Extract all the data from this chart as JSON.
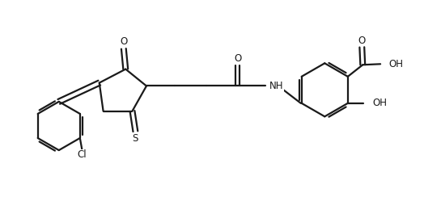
{
  "background_color": "#ffffff",
  "line_color": "#1a1a1a",
  "line_width": 1.6,
  "font_size": 8.5,
  "figsize": [
    5.24,
    2.44
  ],
  "dpi": 100,
  "xlim": [
    0,
    10.5
  ],
  "ylim": [
    0,
    5.0
  ]
}
